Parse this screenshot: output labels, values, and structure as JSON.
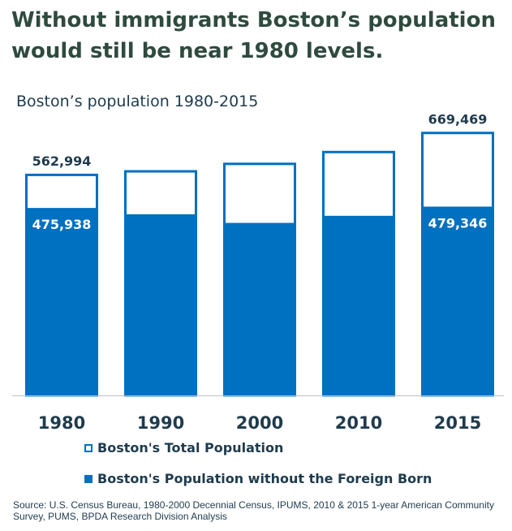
{
  "title": "Without immigrants Boston’s population would still be near 1980 levels.",
  "chart_data": {
    "type": "bar",
    "title": "Boston’s population 1980-2015",
    "categories": [
      "1980",
      "1990",
      "2000",
      "2010",
      "2015"
    ],
    "series": [
      {
        "name": "Boston's Total Population",
        "values": [
          562994,
          572000,
          591000,
          621000,
          669469
        ],
        "style": "outline",
        "color": "#0070C0"
      },
      {
        "name": "Boston's Population without the Foreign Born",
        "values": [
          475938,
          460000,
          438000,
          456000,
          479346
        ],
        "style": "filled",
        "color": "#0070C0"
      }
    ],
    "data_labels": {
      "total": [
        "562,994",
        "",
        "",
        "",
        "669,469"
      ],
      "without": [
        "475,938",
        "",
        "",
        "",
        "479,346"
      ]
    },
    "ylim": [
      0,
      670000
    ],
    "grid": false,
    "legend_position": "bottom"
  },
  "source": "Source: U.S. Census Bureau, 1980-2000 Decennial Census, IPUMS, 2010 & 2015 1-year American Community Survey, PUMS, BPDA Research Division Analysis"
}
